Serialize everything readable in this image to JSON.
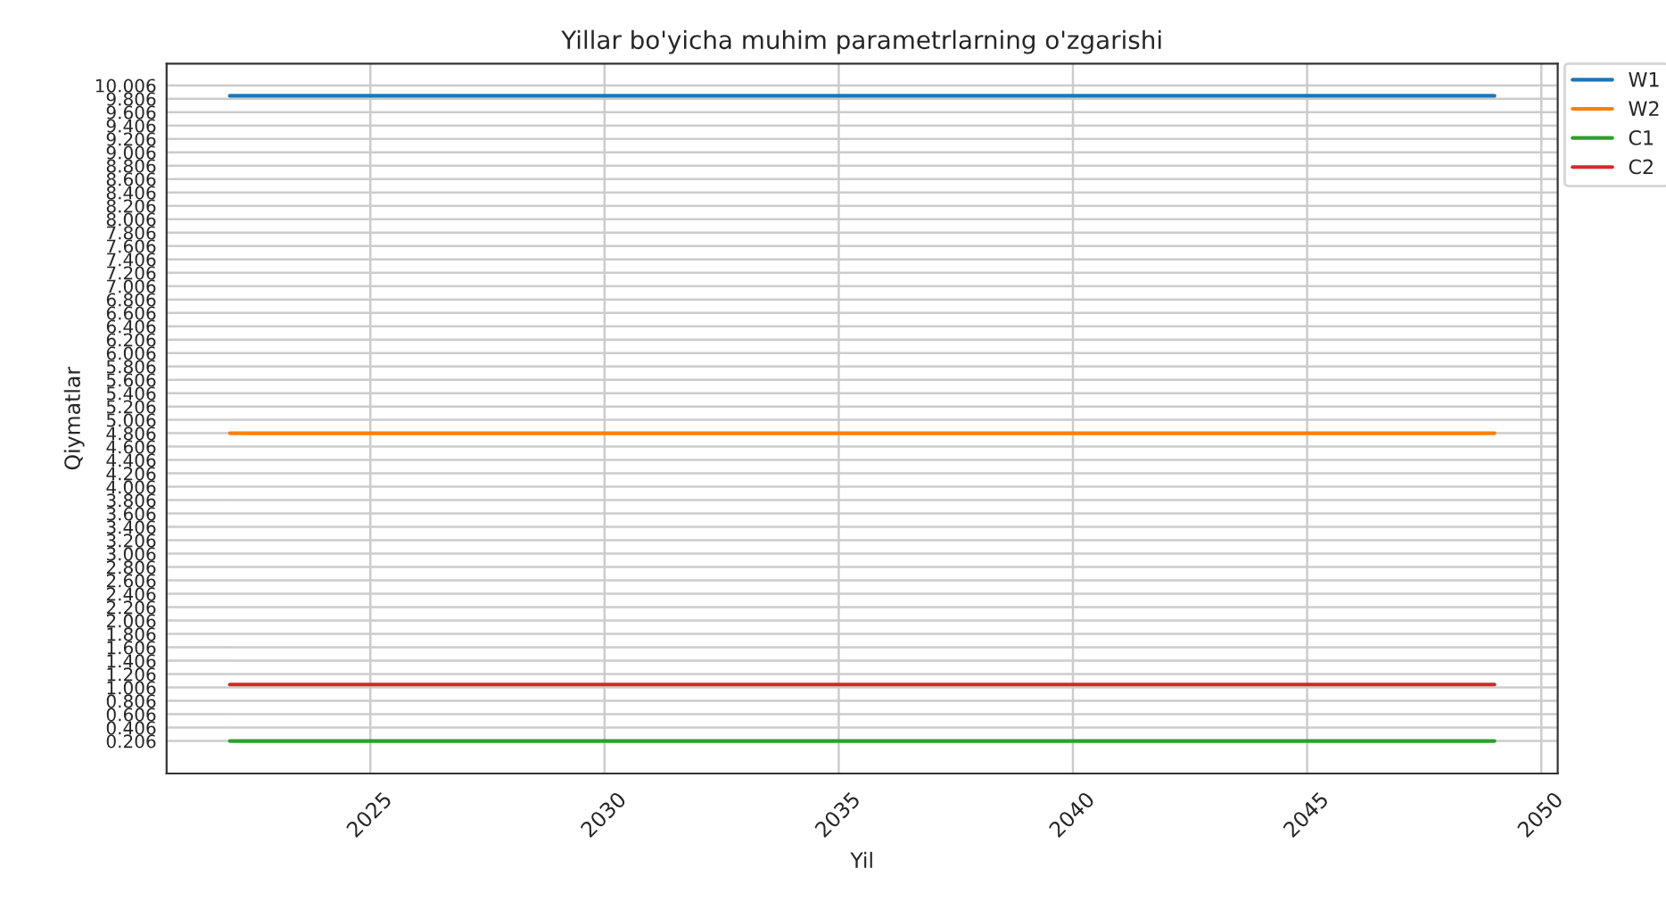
{
  "chart_data": {
    "type": "line",
    "title": "Yillar bo'yicha muhim parametrlarning o'zgarishi",
    "xlabel": "Yil",
    "ylabel": "Qiymatlar",
    "x": [
      2022,
      2049
    ],
    "series": [
      {
        "name": "W1",
        "color": "#1f77b4",
        "values": [
          9.85,
          9.85
        ]
      },
      {
        "name": "W2",
        "color": "#ff7f0e",
        "values": [
          4.806,
          4.806
        ]
      },
      {
        "name": "C1",
        "color": "#2ca02c",
        "values": [
          0.206,
          0.206
        ]
      },
      {
        "name": "C2",
        "color": "#d62728",
        "values": [
          1.05,
          1.05
        ]
      }
    ],
    "xlim": [
      2020.65,
      2050.35
    ],
    "xticks": [
      2025,
      2030,
      2035,
      2040,
      2045,
      2050
    ],
    "ylim": [
      -0.28,
      10.33
    ],
    "yticks": [
      0.206,
      0.406,
      0.606,
      0.806,
      1.006,
      1.206,
      1.406,
      1.606,
      1.806,
      2.006,
      2.206,
      2.406,
      2.606,
      2.806,
      3.006,
      3.206,
      3.406,
      3.606,
      3.806,
      4.006,
      4.206,
      4.406,
      4.606,
      4.806,
      5.006,
      5.206,
      5.406,
      5.606,
      5.806,
      6.006,
      6.206,
      6.406,
      6.606,
      6.806,
      7.006,
      7.206,
      7.406,
      7.606,
      7.806,
      8.006,
      8.206,
      8.406,
      8.606,
      8.806,
      9.006,
      9.206,
      9.406,
      9.606,
      9.806,
      10.006
    ],
    "grid": true,
    "legend": "top right",
    "line_style": "solid",
    "marker": "none"
  }
}
